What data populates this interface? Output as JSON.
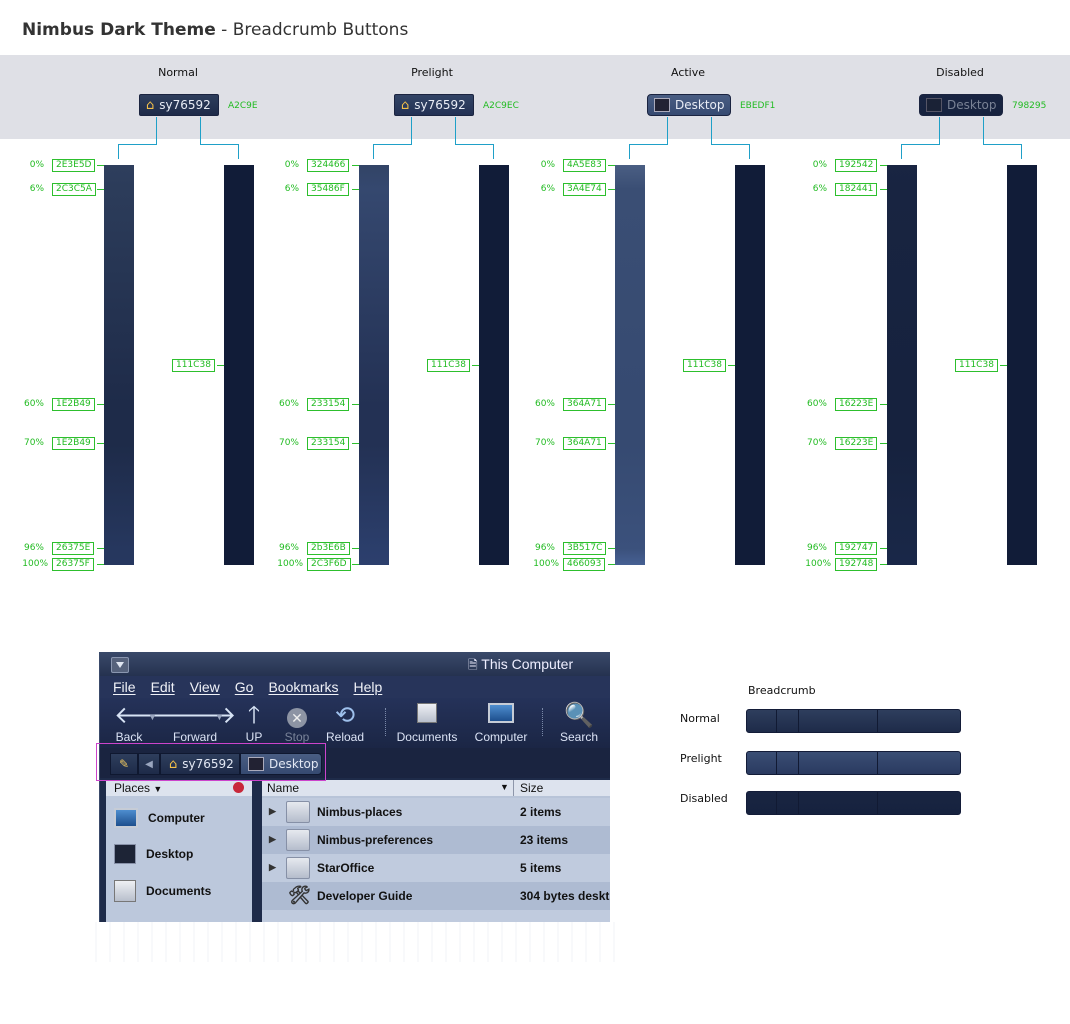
{
  "header": {
    "title_bold": "Nimbus Dark Theme",
    "title_rest": " - Breadcrumb Buttons"
  },
  "states": [
    {
      "name": "Normal",
      "button_label": "sy76592",
      "text_color": "A2C9E",
      "icon": "home-icon",
      "stops": [
        {
          "pct": "0%",
          "color": "2E3E5D"
        },
        {
          "pct": "6%",
          "color": "2C3C5A"
        },
        {
          "pct": "60%",
          "color": "1E2B49"
        },
        {
          "pct": "70%",
          "color": "1E2B49"
        },
        {
          "pct": "96%",
          "color": "26375E"
        },
        {
          "pct": "100%",
          "color": "26375F"
        }
      ],
      "border_color": "111C38"
    },
    {
      "name": "Prelight",
      "button_label": "sy76592",
      "text_color": "A2C9EC",
      "icon": "home-icon",
      "stops": [
        {
          "pct": "0%",
          "color": "324466"
        },
        {
          "pct": "6%",
          "color": "35486F"
        },
        {
          "pct": "60%",
          "color": "233154"
        },
        {
          "pct": "70%",
          "color": "233154"
        },
        {
          "pct": "96%",
          "color": "2b3E6B"
        },
        {
          "pct": "100%",
          "color": "2C3F6D"
        }
      ],
      "border_color": "111C38"
    },
    {
      "name": "Active",
      "button_label": "Desktop",
      "text_color": "EBEDF1",
      "icon": "desktop-icon",
      "stops": [
        {
          "pct": "0%",
          "color": "4A5E83"
        },
        {
          "pct": "6%",
          "color": "3A4E74"
        },
        {
          "pct": "60%",
          "color": "364A71"
        },
        {
          "pct": "70%",
          "color": "364A71"
        },
        {
          "pct": "96%",
          "color": "3B517C"
        },
        {
          "pct": "100%",
          "color": "466093"
        }
      ],
      "border_color": "111C38"
    },
    {
      "name": "Disabled",
      "button_label": "Desktop",
      "text_color": "798295",
      "icon": "desktop-icon",
      "stops": [
        {
          "pct": "0%",
          "color": "192542"
        },
        {
          "pct": "6%",
          "color": "182441"
        },
        {
          "pct": "60%",
          "color": "16223E"
        },
        {
          "pct": "70%",
          "color": "16223E"
        },
        {
          "pct": "96%",
          "color": "192747"
        },
        {
          "pct": "100%",
          "color": "192748"
        }
      ],
      "border_color": "111C38"
    }
  ],
  "window": {
    "title": "This Computer",
    "menu": [
      "File",
      "Edit",
      "View",
      "Go",
      "Bookmarks",
      "Help"
    ],
    "toolbar": [
      {
        "label": "Back",
        "icon": "back-arrow-icon"
      },
      {
        "label": "Forward",
        "icon": "forward-arrow-icon"
      },
      {
        "label": "UP",
        "icon": "up-arrow-icon"
      },
      {
        "label": "Stop",
        "icon": "stop-icon"
      },
      {
        "label": "Reload",
        "icon": "reload-icon"
      },
      {
        "label": "Documents",
        "icon": "documents-icon"
      },
      {
        "label": "Computer",
        "icon": "computer-icon"
      },
      {
        "label": "Search",
        "icon": "search-icon"
      }
    ],
    "breadcrumb": [
      {
        "label": "sy76592",
        "icon": "home-icon"
      },
      {
        "label": "Desktop",
        "icon": "desktop-icon"
      }
    ],
    "places_header": "Places",
    "places": [
      {
        "label": "Computer",
        "icon": "computer-icon"
      },
      {
        "label": "Desktop",
        "icon": "desktop-icon"
      },
      {
        "label": "Documents",
        "icon": "documents-icon"
      }
    ],
    "columns": [
      "Name",
      "Size"
    ],
    "rows": [
      {
        "name": "Nimbus-places",
        "size": "2 items",
        "type": "folder"
      },
      {
        "name": "Nimbus-preferences",
        "size": "23 items",
        "type": "folder"
      },
      {
        "name": "StarOffice",
        "size": "5 items",
        "type": "folder"
      },
      {
        "name": "Developer Guide",
        "size": "304 bytes deskt",
        "type": "launcher"
      }
    ]
  },
  "preview": {
    "title": "Breadcrumb",
    "states": [
      "Normal",
      "Prelight",
      "Disabled"
    ]
  }
}
